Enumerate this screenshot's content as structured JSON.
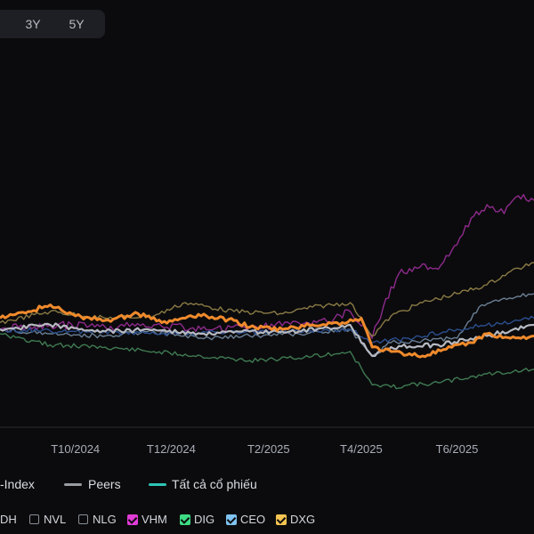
{
  "range_tabs": [
    {
      "label": "3Y"
    },
    {
      "label": "5Y"
    }
  ],
  "legend": {
    "index_label": "-Index",
    "peers_label": "Peers",
    "all_label": "Tất cả cổ phiếu",
    "peers_color": "#9a9ca2",
    "all_color": "#2ec4b6"
  },
  "tickers": [
    {
      "label": "DH",
      "checked": false,
      "color": ""
    },
    {
      "label": "NVL",
      "checked": false,
      "color": ""
    },
    {
      "label": "NLG",
      "checked": false,
      "color": ""
    },
    {
      "label": "VHM",
      "checked": true,
      "color": "#e23bd6"
    },
    {
      "label": "DIG",
      "checked": true,
      "color": "#3ddc84"
    },
    {
      "label": "CEO",
      "checked": true,
      "color": "#7fc3f0"
    },
    {
      "label": "DXG",
      "checked": true,
      "color": "#f5c451"
    }
  ],
  "chart_data": {
    "type": "line",
    "x_ticks": [
      "T10/2024",
      "T12/2024",
      "T2/2025",
      "T4/2025",
      "T6/2025"
    ],
    "x_domain": [
      "2024-08-14",
      "2025-07-20"
    ],
    "y_range": [
      -40,
      80
    ],
    "series": [
      {
        "key": "vhm",
        "color": "#8e2a8c",
        "width": 1.4,
        "x": [
          "2024-08-14",
          "2024-09-15",
          "2024-10-20",
          "2024-11-20",
          "2024-12-20",
          "2025-01-20",
          "2025-02-20",
          "2025-03-15",
          "2025-03-25",
          "2025-04-08",
          "2025-04-15",
          "2025-04-25",
          "2025-05-05",
          "2025-05-20",
          "2025-06-01",
          "2025-06-10",
          "2025-06-20",
          "2025-07-01",
          "2025-07-10",
          "2025-07-20"
        ],
        "y": [
          0,
          2,
          1,
          2,
          0,
          1,
          3,
          5,
          8,
          -4,
          10,
          25,
          28,
          27,
          38,
          50,
          56,
          52,
          60,
          58
        ]
      },
      {
        "key": "dxg-thin",
        "color": "#8a7a45",
        "width": 1.4,
        "x": [
          "2024-08-14",
          "2024-09-15",
          "2024-10-20",
          "2024-11-20",
          "2024-12-10",
          "2025-01-10",
          "2025-02-10",
          "2025-03-01",
          "2025-03-25",
          "2025-04-08",
          "2025-04-20",
          "2025-05-10",
          "2025-06-01",
          "2025-06-20",
          "2025-07-05",
          "2025-07-20"
        ],
        "y": [
          3,
          8,
          5,
          6,
          12,
          8,
          7,
          10,
          12,
          -3,
          6,
          12,
          16,
          20,
          26,
          30
        ]
      },
      {
        "key": "ceo",
        "color": "#6b7f94",
        "width": 1.4,
        "x": [
          "2024-08-14",
          "2024-09-15",
          "2024-10-20",
          "2024-11-20",
          "2024-12-20",
          "2025-01-20",
          "2025-02-20",
          "2025-03-25",
          "2025-04-08",
          "2025-04-20",
          "2025-05-10",
          "2025-06-01",
          "2025-06-15",
          "2025-07-01",
          "2025-07-20"
        ],
        "y": [
          0,
          -2,
          -3,
          -1,
          -4,
          -3,
          -2,
          0,
          -12,
          -6,
          -5,
          -4,
          10,
          14,
          16
        ]
      },
      {
        "key": "index",
        "color": "#2b4f8f",
        "width": 1.4,
        "x": [
          "2024-08-14",
          "2024-10-01",
          "2024-12-01",
          "2025-02-01",
          "2025-03-25",
          "2025-04-08",
          "2025-05-01",
          "2025-06-01",
          "2025-07-20"
        ],
        "y": [
          0,
          -1,
          -2,
          -1,
          0,
          -6,
          -4,
          0,
          5
        ]
      },
      {
        "key": "dig",
        "color": "#3f7a52",
        "width": 1.4,
        "x": [
          "2024-08-14",
          "2024-09-15",
          "2024-10-20",
          "2024-11-20",
          "2024-12-20",
          "2025-01-20",
          "2025-02-20",
          "2025-03-25",
          "2025-04-08",
          "2025-04-20",
          "2025-05-20",
          "2025-06-20",
          "2025-07-20"
        ],
        "y": [
          -2,
          -7,
          -8,
          -10,
          -12,
          -14,
          -13,
          -10,
          -25,
          -26,
          -24,
          -20,
          -18
        ]
      },
      {
        "key": "peers",
        "color": "#b7bac2",
        "width": 2.2,
        "x": [
          "2024-08-14",
          "2024-09-15",
          "2024-10-20",
          "2024-11-20",
          "2024-12-20",
          "2025-01-20",
          "2025-02-20",
          "2025-03-25",
          "2025-04-08",
          "2025-04-20",
          "2025-05-20",
          "2025-06-20",
          "2025-07-20"
        ],
        "y": [
          0,
          2,
          -1,
          0,
          -2,
          -1,
          -1,
          2,
          -12,
          -8,
          -7,
          -3,
          2
        ]
      },
      {
        "key": "dxg",
        "color": "#f08a2c",
        "width": 3,
        "x": [
          "2024-08-14",
          "2024-09-01",
          "2024-09-15",
          "2024-10-01",
          "2024-10-20",
          "2024-11-10",
          "2024-11-25",
          "2024-12-10",
          "2024-12-20",
          "2025-01-10",
          "2025-01-20",
          "2025-02-10",
          "2025-03-01",
          "2025-03-20",
          "2025-04-01",
          "2025-04-08",
          "2025-04-20",
          "2025-05-10",
          "2025-05-25",
          "2025-06-10",
          "2025-06-20",
          "2025-07-05",
          "2025-07-20"
        ],
        "y": [
          5,
          8,
          11,
          6,
          4,
          7,
          3,
          5,
          6,
          4,
          1,
          0,
          2,
          3,
          5,
          -8,
          -10,
          -12,
          -9,
          -6,
          -2,
          -4,
          -3
        ]
      }
    ]
  }
}
